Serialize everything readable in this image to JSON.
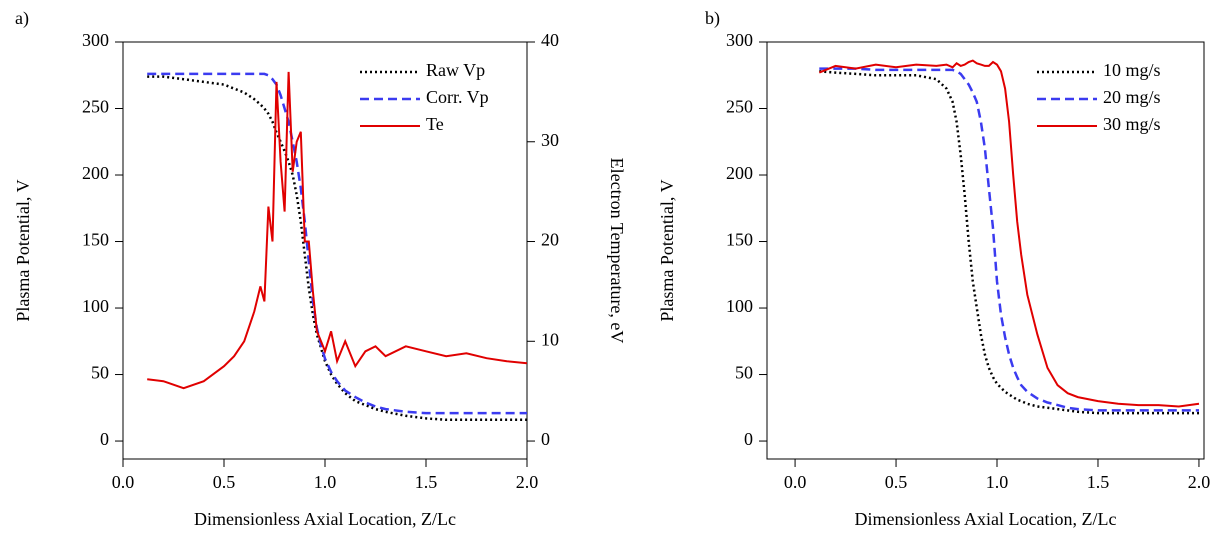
{
  "chart_data": [
    {
      "type": "line",
      "panel_label": "a)",
      "xlabel": "Dimensionless Axial Location, Z/Lc",
      "ylabel": "Plasma Potential, V",
      "y2label": "Electron Temperature, eV",
      "x": [
        0.12,
        0.2,
        0.3,
        0.4,
        0.5,
        0.55,
        0.6,
        0.65,
        0.68,
        0.7,
        0.72,
        0.74,
        0.76,
        0.78,
        0.8,
        0.82,
        0.84,
        0.86,
        0.88,
        0.9,
        0.92,
        0.94,
        0.96,
        0.98,
        1.0,
        1.03,
        1.06,
        1.1,
        1.15,
        1.2,
        1.25,
        1.3,
        1.4,
        1.5,
        1.6,
        1.7,
        1.8,
        1.9,
        2.0
      ],
      "series": [
        {
          "name": "Raw Vp",
          "color": "#000000",
          "dash": "dotted",
          "values": [
            274,
            274,
            272,
            270,
            268,
            265,
            262,
            257,
            253,
            250,
            246,
            240,
            232,
            225,
            218,
            210,
            200,
            185,
            165,
            140,
            115,
            95,
            80,
            70,
            60,
            50,
            43,
            36,
            30,
            27,
            24,
            22,
            19,
            17,
            16,
            16,
            16,
            16,
            16
          ]
        },
        {
          "name": "Corr. Vp",
          "color": "#3b3bf0",
          "dash": "dashed",
          "values": [
            276,
            276,
            276,
            276,
            276,
            276,
            276,
            276,
            276,
            276,
            275,
            272,
            268,
            260,
            250,
            240,
            225,
            210,
            190,
            165,
            135,
            105,
            85,
            72,
            62,
            52,
            45,
            38,
            33,
            29,
            26,
            24,
            22,
            21,
            21,
            21,
            21,
            21,
            21
          ]
        },
        {
          "name": "Te",
          "color": "#e00000",
          "dash": "solid",
          "axis": "y2",
          "values": [
            6.2,
            6,
            5.3,
            6,
            7.5,
            8.5,
            10,
            13,
            15.5,
            14,
            23.5,
            20,
            36,
            28,
            23,
            37,
            27,
            30,
            31,
            20,
            20,
            15,
            11,
            10,
            9,
            11,
            8,
            10,
            7.5,
            9,
            9.5,
            8.5,
            9.5,
            9,
            8.5,
            8.8,
            8.3,
            8,
            7.8
          ]
        }
      ],
      "xlim": [
        0,
        2
      ],
      "xticks": [
        {
          "value": 0,
          "label": "0.0"
        },
        0.5,
        {
          "value": 1,
          "label": "1.0"
        },
        1.5,
        {
          "value": 2,
          "label": "2.0"
        }
      ],
      "ylim": [
        -13.5,
        300
      ],
      "yticks": [
        0,
        50,
        100,
        150,
        200,
        250,
        300
      ],
      "y2lim": [
        -1.8,
        40
      ],
      "y2ticks": [
        0,
        10,
        20,
        30,
        40
      ],
      "legend": "upper right"
    },
    {
      "type": "line",
      "panel_label": "b)",
      "xlabel": "Dimensionless Axial Location, Z/Lc",
      "ylabel": "Plasma Potential, V",
      "x": [
        0.12,
        0.2,
        0.3,
        0.4,
        0.5,
        0.6,
        0.7,
        0.75,
        0.78,
        0.8,
        0.82,
        0.84,
        0.86,
        0.88,
        0.9,
        0.92,
        0.94,
        0.96,
        0.98,
        1.0,
        1.02,
        1.04,
        1.06,
        1.08,
        1.1,
        1.12,
        1.15,
        1.2,
        1.25,
        1.3,
        1.35,
        1.4,
        1.5,
        1.6,
        1.7,
        1.8,
        1.9,
        2.0
      ],
      "series": [
        {
          "name": "10 mg/s",
          "color": "#000000",
          "dash": "dotted",
          "values": [
            278,
            277,
            276,
            275,
            275,
            275,
            272,
            265,
            255,
            240,
            215,
            185,
            150,
            120,
            100,
            80,
            65,
            55,
            48,
            43,
            40,
            37,
            35,
            33,
            31,
            30,
            28,
            26,
            25,
            24,
            23,
            22,
            21,
            21,
            21,
            21,
            21,
            21
          ]
        },
        {
          "name": "20 mg/s",
          "color": "#3b3bf0",
          "dash": "dashed",
          "values": [
            280,
            280,
            280,
            279,
            279,
            279,
            279,
            279,
            279,
            278,
            276,
            272,
            268,
            262,
            255,
            240,
            220,
            190,
            160,
            120,
            95,
            78,
            65,
            55,
            48,
            42,
            37,
            32,
            29,
            27,
            25,
            24,
            23,
            23,
            23,
            23,
            23,
            23
          ]
        },
        {
          "name": "30 mg/s",
          "color": "#e00000",
          "dash": "solid",
          "values": [
            277,
            282,
            280,
            283,
            281,
            283,
            282,
            283,
            281,
            284,
            282,
            283,
            285,
            286,
            284,
            283,
            282,
            282,
            285,
            283,
            278,
            265,
            240,
            200,
            165,
            140,
            110,
            80,
            55,
            42,
            36,
            33,
            30,
            28,
            27,
            27,
            26,
            28
          ]
        }
      ],
      "xlim": [
        -0.139,
        2.025
      ],
      "xticks": [
        {
          "value": 0,
          "label": "0.0"
        },
        0.5,
        {
          "value": 1,
          "label": "1.0"
        },
        1.5,
        {
          "value": 2,
          "label": "2.0"
        }
      ],
      "ylim": [
        -13.5,
        300
      ],
      "yticks": [
        0,
        50,
        100,
        150,
        200,
        250,
        300
      ],
      "legend": "upper right"
    }
  ]
}
